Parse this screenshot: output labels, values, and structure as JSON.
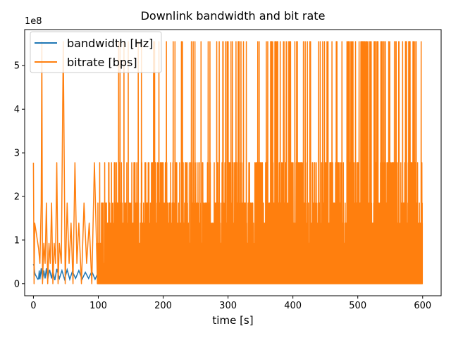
{
  "chart_data": {
    "type": "line",
    "title": "Downlink bandwidth and bit rate",
    "xlabel": "time [s]",
    "ylabel": "",
    "y_offset_label": "1e8",
    "xlim": [
      -13.5,
      628.5
    ],
    "ylim": [
      -27750000,
      582750000
    ],
    "x_ticks": [
      0,
      100,
      200,
      300,
      400,
      500,
      600
    ],
    "x_tick_labels": [
      "0",
      "100",
      "200",
      "300",
      "400",
      "500",
      "600"
    ],
    "y_ticks": [
      0,
      100000000,
      200000000,
      300000000,
      400000000,
      500000000
    ],
    "y_tick_labels": [
      "0",
      "1",
      "2",
      "3",
      "4",
      "5"
    ],
    "grid": false,
    "legend_position": "top-left",
    "bitrate_levels": [
      0,
      46250000,
      92500000,
      138750000,
      185000000,
      277500000,
      555000000
    ],
    "series": [
      {
        "name": "bandwidth [Hz]",
        "color": "#1f77b4",
        "x": [
          0,
          1,
          2,
          3,
          4,
          5,
          6,
          7,
          8,
          9,
          10,
          12,
          14,
          16,
          18,
          20,
          22,
          25,
          28,
          30,
          33,
          36,
          40,
          44,
          48,
          52,
          56,
          60,
          65,
          70,
          75,
          80,
          85,
          90,
          95,
          100,
          105,
          110,
          115,
          120
        ],
        "values": [
          45000000,
          40000000,
          25000000,
          20000000,
          18000000,
          15000000,
          12000000,
          10000000,
          12000000,
          30000000,
          10000000,
          35000000,
          8000000,
          30000000,
          12000000,
          35000000,
          10000000,
          32000000,
          12000000,
          30000000,
          8000000,
          34000000,
          12000000,
          30000000,
          10000000,
          32000000,
          10000000,
          28000000,
          12000000,
          30000000,
          10000000,
          26000000,
          12000000,
          28000000,
          10000000,
          26000000,
          12000000,
          24000000,
          10000000,
          22000000
        ]
      },
      {
        "name": "bitrate [bps]",
        "color": "#ff7f0e",
        "x": [
          0,
          1,
          2,
          4,
          6,
          8,
          10,
          12,
          13,
          14,
          16,
          18,
          20,
          22,
          24,
          26,
          28,
          30,
          32,
          34,
          36,
          38,
          40,
          43,
          46,
          49,
          52,
          55,
          58,
          61,
          64,
          67,
          70,
          74,
          78,
          82,
          86,
          90,
          94,
          98
        ],
        "values": [
          277500000,
          0,
          138750000,
          120000000,
          100000000,
          80000000,
          46250000,
          185000000,
          555000000,
          0,
          92500000,
          46250000,
          185000000,
          0,
          92500000,
          46250000,
          185000000,
          0,
          92500000,
          46250000,
          277500000,
          0,
          92500000,
          46250000,
          555000000,
          0,
          185000000,
          46250000,
          138750000,
          0,
          277500000,
          46250000,
          138750000,
          0,
          185000000,
          46250000,
          138750000,
          0,
          277500000,
          46250000
        ]
      }
    ]
  }
}
